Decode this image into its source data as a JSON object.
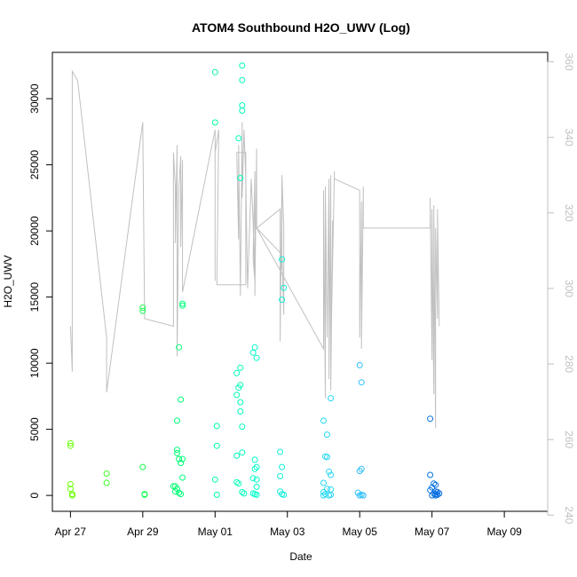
{
  "chart_data": {
    "type": "scatter",
    "title": "ATOM4 Southbound H2O_UWV (Log)",
    "xlabel": "Date",
    "ylabel": "H2O_UWV",
    "x_ticks": [
      "Apr 27",
      "Apr 29",
      "May 01",
      "May 03",
      "May 05",
      "May 07",
      "May 09"
    ],
    "y_ticks": [
      "0",
      "5000",
      "10000",
      "15000",
      "20000",
      "25000",
      "30000"
    ],
    "y_tick_values": [
      0,
      5000,
      10000,
      15000,
      20000,
      25000,
      30000
    ],
    "y2_ticks": [
      "240",
      "260",
      "280",
      "300",
      "320",
      "340",
      "360"
    ],
    "y2_tick_values": [
      240,
      260,
      280,
      300,
      320,
      340,
      360
    ],
    "y2_color": "#c0c0c0",
    "xlim_days": [
      -0.5,
      13.2
    ],
    "ylim": [
      -1200,
      33500
    ],
    "y2lim": [
      241,
      362.5
    ],
    "marker": "open-circle",
    "color_scale": [
      "#66ff00",
      "#00ff66",
      "#00ffcc",
      "#33ccff",
      "#0066dd"
    ],
    "series": [
      {
        "values": [
          [
            0.0,
            3950
          ],
          [
            0.0,
            3750
          ],
          [
            0.0,
            850
          ],
          [
            0.0,
            500
          ],
          [
            0.05,
            100
          ],
          [
            0.05,
            0
          ],
          [
            1.0,
            1650
          ],
          [
            1.0,
            950
          ],
          [
            2.0,
            14200
          ],
          [
            2.0,
            13950
          ],
          [
            2.0,
            2150
          ],
          [
            2.05,
            100
          ],
          [
            2.05,
            50
          ],
          [
            2.85,
            700
          ],
          [
            2.9,
            700
          ],
          [
            2.9,
            300
          ],
          [
            2.95,
            500
          ],
          [
            2.95,
            5650
          ],
          [
            2.95,
            3450
          ],
          [
            2.95,
            3200
          ],
          [
            3.0,
            11200
          ],
          [
            3.0,
            2750
          ],
          [
            3.0,
            200
          ],
          [
            3.05,
            7250
          ],
          [
            3.05,
            2450
          ],
          [
            3.05,
            100
          ],
          [
            3.1,
            14500
          ],
          [
            3.1,
            14350
          ],
          [
            3.1,
            2750
          ],
          [
            3.1,
            1350
          ],
          [
            4.0,
            32000
          ],
          [
            4.0,
            28200
          ],
          [
            4.05,
            5250
          ],
          [
            4.05,
            3750
          ],
          [
            4.0,
            1200
          ],
          [
            4.05,
            50
          ],
          [
            4.75,
            32500
          ],
          [
            4.75,
            31400
          ],
          [
            4.65,
            27000
          ],
          [
            4.7,
            24000
          ],
          [
            4.75,
            29500
          ],
          [
            4.75,
            29100
          ],
          [
            4.6,
            9250
          ],
          [
            4.7,
            9650
          ],
          [
            4.65,
            8150
          ],
          [
            4.7,
            8350
          ],
          [
            4.6,
            7600
          ],
          [
            4.7,
            7050
          ],
          [
            4.7,
            6350
          ],
          [
            4.75,
            5200
          ],
          [
            4.6,
            3000
          ],
          [
            4.75,
            3250
          ],
          [
            4.6,
            1000
          ],
          [
            4.65,
            900
          ],
          [
            4.75,
            250
          ],
          [
            4.8,
            150
          ],
          [
            5.1,
            11200
          ],
          [
            5.05,
            10800
          ],
          [
            5.15,
            10400
          ],
          [
            5.1,
            2700
          ],
          [
            5.15,
            2150
          ],
          [
            5.1,
            2000
          ],
          [
            5.05,
            1300
          ],
          [
            5.15,
            1200
          ],
          [
            5.15,
            650
          ],
          [
            5.05,
            150
          ],
          [
            5.1,
            100
          ],
          [
            5.15,
            50
          ],
          [
            5.85,
            17850
          ],
          [
            5.9,
            15700
          ],
          [
            5.85,
            14800
          ],
          [
            5.8,
            3300
          ],
          [
            5.85,
            2150
          ],
          [
            5.8,
            1450
          ],
          [
            5.8,
            300
          ],
          [
            5.85,
            100
          ],
          [
            5.9,
            50
          ],
          [
            7.0,
            5650
          ],
          [
            7.2,
            7350
          ],
          [
            7.1,
            4600
          ],
          [
            7.05,
            2950
          ],
          [
            7.1,
            2900
          ],
          [
            7.0,
            950
          ],
          [
            7.15,
            1800
          ],
          [
            7.2,
            1550
          ],
          [
            7.0,
            250
          ],
          [
            7.05,
            100
          ],
          [
            7.1,
            500
          ],
          [
            7.2,
            450
          ],
          [
            7.15,
            0
          ],
          [
            7.2,
            50
          ],
          [
            7.0,
            0
          ],
          [
            8.0,
            9850
          ],
          [
            8.05,
            8550
          ],
          [
            8.0,
            1850
          ],
          [
            8.05,
            2000
          ],
          [
            7.95,
            200
          ],
          [
            8.05,
            50
          ],
          [
            8.1,
            0
          ],
          [
            8.0,
            0
          ],
          [
            9.95,
            5800
          ],
          [
            9.95,
            1550
          ],
          [
            10.05,
            900
          ],
          [
            10.1,
            800
          ],
          [
            10.0,
            600
          ],
          [
            9.95,
            400
          ],
          [
            10.1,
            300
          ],
          [
            10.15,
            250
          ],
          [
            10.05,
            150
          ],
          [
            10.1,
            100
          ],
          [
            10.15,
            50
          ],
          [
            10.0,
            0
          ],
          [
            10.1,
            0
          ],
          [
            10.2,
            150
          ]
        ]
      },
      {
        "axis": "right",
        "color": "#c0c0c0",
        "values": [
          [
            0.0,
            290
          ],
          [
            0.05,
            278
          ],
          [
            0.05,
            357.5
          ],
          [
            0.2,
            355
          ],
          [
            1.0,
            287
          ],
          [
            1.0,
            272.5
          ],
          [
            2.0,
            344
          ],
          [
            2.05,
            292
          ],
          [
            2.85,
            290
          ],
          [
            2.85,
            336
          ],
          [
            2.9,
            327
          ],
          [
            2.9,
            312
          ],
          [
            2.95,
            338
          ],
          [
            2.95,
            282
          ],
          [
            3.0,
            327
          ],
          [
            3.05,
            335
          ],
          [
            3.05,
            311
          ],
          [
            3.1,
            334
          ],
          [
            3.1,
            299
          ],
          [
            4.0,
            342
          ],
          [
            4.0,
            302
          ],
          [
            4.0,
            336
          ],
          [
            4.1,
            342
          ],
          [
            4.05,
            301
          ],
          [
            4.85,
            301
          ],
          [
            4.85,
            336
          ],
          [
            4.6,
            336
          ],
          [
            4.65,
            313
          ],
          [
            4.65,
            338
          ],
          [
            4.7,
            298
          ],
          [
            4.75,
            344
          ],
          [
            4.75,
            324
          ],
          [
            4.8,
            342
          ],
          [
            4.85,
            329
          ],
          [
            4.9,
            300
          ],
          [
            5.0,
            329
          ],
          [
            5.05,
            318
          ],
          [
            5.1,
            302
          ],
          [
            5.05,
            308
          ],
          [
            5.1,
            331
          ],
          [
            5.1,
            298
          ],
          [
            5.15,
            337
          ],
          [
            5.15,
            316
          ],
          [
            5.8,
            321
          ],
          [
            5.8,
            286
          ],
          [
            5.85,
            329
          ],
          [
            5.85,
            305
          ],
          [
            5.85,
            330
          ],
          [
            5.9,
            316
          ],
          [
            5.9,
            293
          ],
          [
            5.85,
            309
          ],
          [
            5.15,
            316
          ],
          [
            7.0,
            284
          ],
          [
            7.0,
            326
          ],
          [
            7.05,
            271
          ],
          [
            7.05,
            327
          ],
          [
            7.1,
            287
          ],
          [
            7.15,
            329
          ],
          [
            7.15,
            276
          ],
          [
            7.2,
            330
          ],
          [
            7.2,
            273
          ],
          [
            7.25,
            318
          ],
          [
            7.2,
            282
          ],
          [
            7.3,
            331
          ],
          [
            7.3,
            329
          ],
          [
            8.0,
            326
          ],
          [
            8.0,
            316
          ],
          [
            8.0,
            287
          ],
          [
            8.05,
            323
          ],
          [
            8.05,
            284
          ],
          [
            8.1,
            327
          ],
          [
            8.1,
            316
          ],
          [
            9.95,
            316
          ],
          [
            9.95,
            324
          ],
          [
            10.0,
            281
          ],
          [
            10.0,
            321
          ],
          [
            10.05,
            272
          ],
          [
            10.05,
            322
          ],
          [
            10.1,
            263
          ],
          [
            10.1,
            316
          ],
          [
            10.15,
            292
          ],
          [
            10.15,
            321
          ],
          [
            10.2,
            290
          ]
        ]
      }
    ]
  }
}
